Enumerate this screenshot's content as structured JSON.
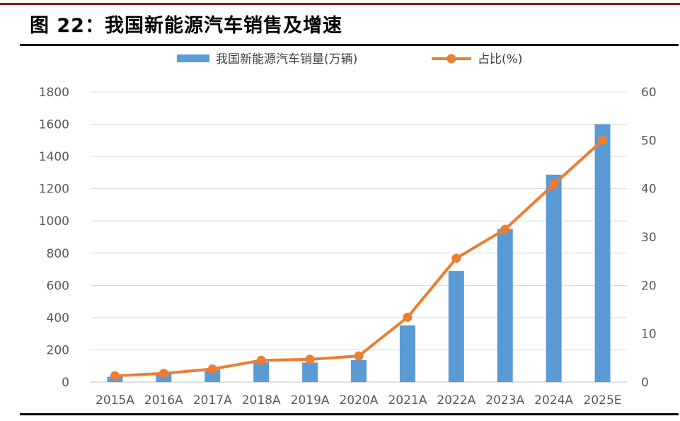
{
  "title": "图 22：我国新能源汽车销售及增速",
  "colors": {
    "bar": "#5b9bd5",
    "line": "#ed7d31",
    "grid": "#d9d9d9",
    "rule_top": "#8b1a1a"
  },
  "chart_data": {
    "type": "bar",
    "categories": [
      "2015A",
      "2016A",
      "2017A",
      "2018A",
      "2019A",
      "2020A",
      "2021A",
      "2022A",
      "2023A",
      "2024A",
      "2025E"
    ],
    "series": [
      {
        "name": "我国新能源汽车销量(万辆)",
        "type": "bar",
        "axis": "left",
        "values": [
          33,
          51,
          78,
          125,
          121,
          137,
          352,
          689,
          950,
          1287,
          1600
        ]
      },
      {
        "name": "占比(%)",
        "type": "line",
        "axis": "right",
        "values": [
          1.3,
          1.8,
          2.7,
          4.5,
          4.7,
          5.4,
          13.4,
          25.6,
          31.6,
          40.9,
          50.0
        ]
      }
    ],
    "y_left": {
      "lim": [
        0,
        1800
      ],
      "ticks": [
        0,
        200,
        400,
        600,
        800,
        1000,
        1200,
        1400,
        1600,
        1800
      ]
    },
    "y_right": {
      "lim": [
        0,
        60
      ],
      "ticks": [
        0,
        10,
        20,
        30,
        40,
        50,
        60
      ]
    },
    "grid": true,
    "legend_position": "top-center"
  }
}
